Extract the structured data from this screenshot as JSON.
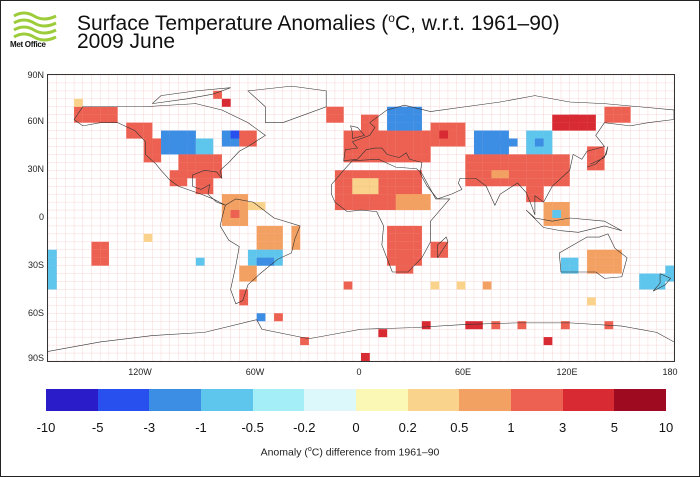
{
  "header": {
    "logo_text": "Met Office",
    "title": "Surface Temperature Anomalies (",
    "title_sup": "o",
    "title_rest": "C, w.r.t. 1961–90)",
    "subtitle": "2009 June"
  },
  "chart_data": {
    "type": "heatmap",
    "title": "Surface Temperature Anomalies (°C, w.r.t. 1961–90) 2009 June",
    "projection": "equirectangular",
    "cell_size_deg": 5,
    "xlim": [
      -180,
      180
    ],
    "ylim": [
      -90,
      90
    ],
    "y_ticks": [
      "90N",
      "60N",
      "30N",
      "0",
      "30S",
      "60S",
      "90S"
    ],
    "y_tick_values": [
      90,
      60,
      30,
      0,
      -30,
      -60,
      -90
    ],
    "x_ticks": [
      "120W",
      "60W",
      "0",
      "60E",
      "120E",
      "180"
    ],
    "x_tick_values": [
      -120,
      -60,
      0,
      60,
      120,
      180
    ],
    "colorbar": {
      "boundaries": [
        "-10",
        "-5",
        "-3",
        "-1",
        "-0.5",
        "-0.2",
        "0",
        "0.2",
        "0.5",
        "1",
        "3",
        "5",
        "10"
      ],
      "colors": [
        "#2a1cc8",
        "#2750ee",
        "#3c8de4",
        "#5ec5ec",
        "#a3eef7",
        "#dcf8fb",
        "#fbf7b4",
        "#f9d38c",
        "#f3a163",
        "#ec6152",
        "#d82a33",
        "#9e0a1f"
      ],
      "label_pre": "Anomaly (",
      "label_sup": "o",
      "label_post": "C) difference from 1961–90"
    },
    "regions": [
      [
        -165,
        60,
        -140,
        70,
        1.5
      ],
      [
        -135,
        50,
        -120,
        60,
        1.5
      ],
      [
        -125,
        35,
        -115,
        50,
        1.2
      ],
      [
        -115,
        40,
        -95,
        55,
        -1.5
      ],
      [
        -110,
        42,
        -100,
        50,
        -2.5
      ],
      [
        -95,
        40,
        -85,
        50,
        -0.7
      ],
      [
        -80,
        45,
        -70,
        55,
        -2
      ],
      [
        -75,
        50,
        -70,
        55,
        -4
      ],
      [
        -70,
        45,
        -60,
        55,
        1.5
      ],
      [
        -105,
        25,
        -80,
        40,
        2
      ],
      [
        -110,
        20,
        -100,
        30,
        1.6
      ],
      [
        -95,
        15,
        -85,
        25,
        1.5
      ],
      [
        -80,
        -5,
        -65,
        12,
        0.8
      ],
      [
        -75,
        0,
        -70,
        5,
        2
      ],
      [
        -65,
        5,
        -55,
        10,
        0.4
      ],
      [
        -60,
        -20,
        -45,
        -5,
        0.6
      ],
      [
        -65,
        -30,
        -45,
        -20,
        -1
      ],
      [
        -60,
        -30,
        -50,
        -25,
        -2.5
      ],
      [
        -70,
        -40,
        -60,
        -30,
        0.7
      ],
      [
        -70,
        -55,
        -65,
        -45,
        2.5
      ],
      [
        -40,
        -20,
        -35,
        -5,
        0.6
      ],
      [
        -20,
        60,
        -10,
        70,
        1.5
      ],
      [
        -10,
        35,
        40,
        55,
        1.8
      ],
      [
        0,
        55,
        10,
        65,
        1.2
      ],
      [
        15,
        55,
        35,
        70,
        -1.2
      ],
      [
        25,
        60,
        30,
        65,
        -2
      ],
      [
        40,
        45,
        60,
        60,
        2.2
      ],
      [
        45,
        50,
        50,
        55,
        3.5
      ],
      [
        65,
        40,
        85,
        55,
        -1.5
      ],
      [
        80,
        45,
        90,
        50,
        -2.5
      ],
      [
        95,
        40,
        110,
        55,
        -1
      ],
      [
        100,
        45,
        105,
        50,
        -2.5
      ],
      [
        60,
        20,
        120,
        40,
        2
      ],
      [
        75,
        25,
        85,
        30,
        0.6
      ],
      [
        110,
        55,
        135,
        65,
        3
      ],
      [
        120,
        60,
        125,
        65,
        4
      ],
      [
        140,
        60,
        155,
        70,
        1.5
      ],
      [
        130,
        30,
        140,
        45,
        1.5
      ],
      [
        -15,
        5,
        35,
        30,
        1.4
      ],
      [
        -5,
        15,
        10,
        25,
        0.4
      ],
      [
        20,
        5,
        40,
        15,
        0.8
      ],
      [
        15,
        -30,
        35,
        -5,
        2
      ],
      [
        40,
        -25,
        50,
        -15,
        2.2
      ],
      [
        20,
        -35,
        30,
        -25,
        1.2
      ],
      [
        95,
        10,
        105,
        20,
        1.5
      ],
      [
        105,
        -5,
        120,
        10,
        0.7
      ],
      [
        110,
        0,
        115,
        5,
        -1
      ],
      [
        130,
        -35,
        150,
        -20,
        0.8
      ],
      [
        115,
        -35,
        125,
        -25,
        -1
      ],
      [
        160,
        -45,
        175,
        -35,
        -1
      ],
      [
        175,
        -40,
        180,
        -30,
        -0.8
      ],
      [
        -180,
        -45,
        -175,
        -20,
        -0.8
      ],
      [
        -155,
        -30,
        -145,
        -15,
        1.5
      ],
      [
        -95,
        -30,
        -90,
        -25,
        -0.6
      ],
      [
        40,
        -45,
        45,
        -40,
        0.3
      ],
      [
        55,
        -45,
        60,
        -40,
        0.3
      ],
      [
        70,
        -45,
        75,
        -40,
        0.8
      ],
      [
        130,
        -55,
        135,
        -50,
        0.3
      ],
      [
        -60,
        -65,
        -55,
        -60,
        -2
      ],
      [
        -50,
        -65,
        -45,
        -60,
        2
      ],
      [
        -10,
        -45,
        -5,
        -40,
        2
      ],
      [
        35,
        -70,
        40,
        -65,
        3.5
      ],
      [
        60,
        -70,
        70,
        -65,
        3.5
      ],
      [
        75,
        -70,
        80,
        -65,
        1
      ],
      [
        90,
        -70,
        95,
        -65,
        2
      ],
      [
        115,
        -70,
        120,
        -65,
        1.5
      ],
      [
        140,
        -70,
        145,
        -65,
        1.5
      ],
      [
        10,
        -75,
        15,
        -70,
        4
      ],
      [
        -35,
        -80,
        -30,
        -75,
        2
      ],
      [
        105,
        -80,
        110,
        -75,
        4
      ],
      [
        0,
        -90,
        5,
        -85,
        4
      ],
      [
        -125,
        -15,
        -120,
        -10,
        0.4
      ],
      [
        -165,
        70,
        -160,
        75,
        0.3
      ],
      [
        -85,
        75,
        -80,
        80,
        2
      ],
      [
        -80,
        70,
        -75,
        75,
        4
      ]
    ]
  }
}
